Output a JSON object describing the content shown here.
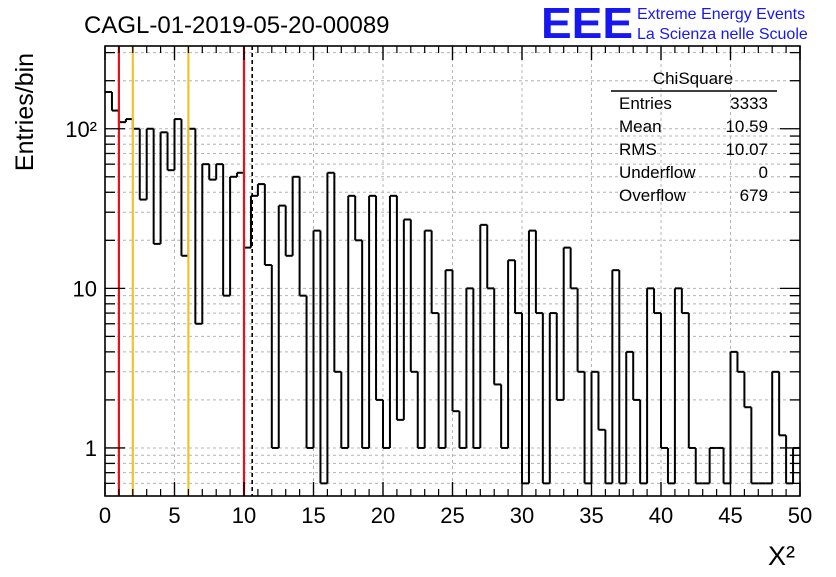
{
  "header": {
    "run_title": "CAGL-01-2019-05-20-00089",
    "logo_text": "EEE",
    "logo_line1": "Extreme Energy Events",
    "logo_line2": "La Scienza nelle Scuole"
  },
  "stats": {
    "title": "ChiSquare",
    "rows": [
      {
        "label": "Entries",
        "value": "3333"
      },
      {
        "label": "Mean",
        "value": "10.59"
      },
      {
        "label": "RMS",
        "value": "10.07"
      },
      {
        "label": "Underflow",
        "value": "0"
      },
      {
        "label": "Overflow",
        "value": "679"
      }
    ]
  },
  "colors": {
    "histogram": "#000000",
    "red_line": "#e8111a",
    "yellow_line": "#f2c12e",
    "grid": "#b4b4b4",
    "logo_blue": "#1717f0"
  },
  "chart_data": {
    "type": "bar",
    "style": "step-histogram",
    "xlabel": "X²",
    "ylabel": "Entries/bin",
    "xlim": [
      0,
      50
    ],
    "ylim": [
      0.5,
      330
    ],
    "y_scale": "log",
    "grid": true,
    "bin_width": 0.5,
    "x_ticks": [
      "0",
      "5",
      "10",
      "15",
      "20",
      "25",
      "30",
      "35",
      "40",
      "45",
      "50"
    ],
    "y_ticks": [
      {
        "value": 1,
        "label": "1"
      },
      {
        "value": 10,
        "label": "10"
      },
      {
        "value": 100,
        "label": "10²"
      }
    ],
    "values": [
      170,
      130,
      110,
      115,
      100,
      36,
      100,
      19,
      95,
      55,
      115,
      16,
      100,
      6,
      60,
      48,
      60,
      9,
      50,
      53,
      18,
      38,
      45,
      14,
      1,
      33,
      16,
      50,
      9,
      1,
      23,
      0.6,
      53,
      3,
      1,
      38,
      20,
      1,
      38,
      2,
      1,
      38,
      1.5,
      27,
      3,
      1,
      23,
      7,
      1,
      13,
      1.7,
      1,
      10,
      1,
      25,
      10,
      2.5,
      1,
      15,
      7,
      0.6,
      23,
      7,
      0.6,
      7,
      2,
      18,
      10,
      3,
      0.6,
      3,
      1.3,
      0.6,
      13,
      0.6,
      4,
      2,
      0.6,
      10,
      7,
      1,
      0.6,
      10,
      7,
      1,
      0.6,
      0.6,
      1,
      1,
      0.6,
      4,
      3,
      1.8,
      0.6,
      0.6,
      0.6,
      3,
      1.2,
      0.6,
      1
    ],
    "vlines": [
      {
        "x": 1,
        "color": "red",
        "style": "solid"
      },
      {
        "x": 2,
        "color": "yellow",
        "style": "solid"
      },
      {
        "x": 6,
        "color": "yellow",
        "style": "solid"
      },
      {
        "x": 10,
        "color": "red",
        "style": "solid"
      },
      {
        "x": 10.59,
        "color": "black",
        "style": "dashed"
      }
    ]
  }
}
